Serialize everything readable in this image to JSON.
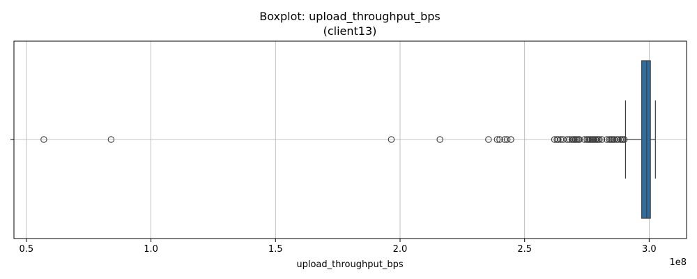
{
  "chart_data": {
    "type": "boxplot",
    "title_line1": "Boxplot: upload_throughput_bps",
    "title_line2": "(client13)",
    "xlabel": "upload_throughput_bps",
    "ylabel": "",
    "x_offset_label": "1e8",
    "xlim": [
      0.45,
      3.15
    ],
    "x_ticks": [
      0.5,
      1.0,
      1.5,
      2.0,
      2.5,
      3.0
    ],
    "x_tick_labels": [
      "0.5",
      "1.0",
      "1.5",
      "2.0",
      "2.5",
      "3.0"
    ],
    "grid": true,
    "box_color": "#2e6d9e",
    "box": {
      "whisker_low": 2.905,
      "q1": 2.97,
      "median": 2.99,
      "q3": 3.005,
      "whisker_high": 3.025
    },
    "outliers": [
      0.57,
      0.84,
      1.965,
      2.16,
      2.355,
      2.39,
      2.4,
      2.42,
      2.43,
      2.445,
      2.62,
      2.63,
      2.635,
      2.645,
      2.655,
      2.67,
      2.68,
      2.69,
      2.695,
      2.7,
      2.705,
      2.71,
      2.715,
      2.72,
      2.74,
      2.75,
      2.755,
      2.76,
      2.765,
      2.77,
      2.775,
      2.78,
      2.785,
      2.79,
      2.795,
      2.8,
      2.81,
      2.83,
      2.84,
      2.845,
      2.85,
      2.855,
      2.86,
      2.87,
      2.875,
      2.885,
      2.89,
      2.895,
      2.9
    ]
  }
}
